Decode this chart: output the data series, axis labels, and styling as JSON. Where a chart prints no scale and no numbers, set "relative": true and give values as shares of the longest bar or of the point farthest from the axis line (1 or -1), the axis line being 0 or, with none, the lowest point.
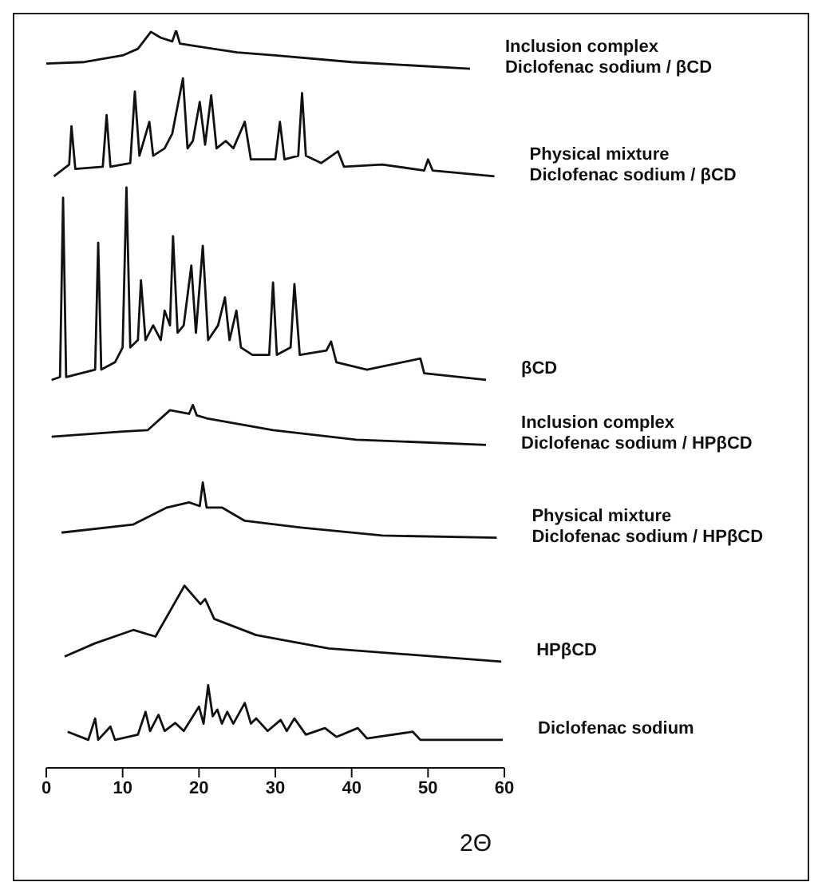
{
  "chart_data": {
    "type": "line",
    "xlabel": "2Θ",
    "xlim": [
      0,
      60
    ],
    "xticks": [
      0,
      10,
      20,
      30,
      40,
      50,
      60
    ],
    "relative": true,
    "tick_labels": "x",
    "grid": false,
    "legend": false,
    "marker": "none",
    "line_style": "solid",
    "series": [
      {
        "name": "Inclusion complex\nDiclofenac sodium / βCD",
        "color": "#111111",
        "x": [
          0,
          5,
          10,
          12,
          13.7,
          15,
          16.5,
          17,
          17.5,
          20,
          25,
          30,
          40,
          55.5
        ],
        "values": [
          0.955,
          0.957,
          0.966,
          0.975,
          0.998,
          0.99,
          0.985,
          1,
          0.982,
          0.978,
          0.97,
          0.966,
          0.957,
          0.948
        ]
      },
      {
        "name": "Physical mixture\nDiclofenac sodium / βCD",
        "color": "#111111",
        "x": [
          1,
          3,
          3.3,
          3.8,
          7.4,
          7.9,
          8.4,
          11,
          11.6,
          12.2,
          13.5,
          14,
          15.5,
          16.5,
          17.9,
          18.5,
          19.2,
          20.1,
          20.8,
          21.6,
          22.3,
          23.5,
          24.5,
          26,
          26.8,
          30,
          30.6,
          31.2,
          33,
          33.5,
          34,
          36,
          38.2,
          39,
          44,
          49.5,
          50,
          50.6,
          58.7
        ],
        "values": [
          0.802,
          0.818,
          0.87,
          0.812,
          0.815,
          0.885,
          0.815,
          0.82,
          0.917,
          0.83,
          0.876,
          0.83,
          0.84,
          0.86,
          0.935,
          0.84,
          0.85,
          0.903,
          0.845,
          0.912,
          0.84,
          0.85,
          0.84,
          0.876,
          0.825,
          0.825,
          0.876,
          0.825,
          0.83,
          0.915,
          0.83,
          0.82,
          0.836,
          0.815,
          0.818,
          0.81,
          0.825,
          0.81,
          0.802
        ]
      },
      {
        "name": "βCD",
        "color": "#111111",
        "x": [
          0.7,
          1.8,
          2.2,
          2.6,
          6.4,
          6.8,
          7.2,
          9,
          10,
          10.5,
          11,
          12,
          12.4,
          13,
          14,
          15,
          15.5,
          16.2,
          16.6,
          17.2,
          18,
          19,
          19.6,
          20.5,
          21.2,
          22.5,
          23.4,
          24,
          24.9,
          25.5,
          27,
          29.2,
          29.7,
          30.2,
          32,
          32.5,
          33.2,
          36.7,
          37.3,
          38,
          42,
          49,
          49.5,
          57.6
        ],
        "values": [
          0.526,
          0.53,
          0.773,
          0.53,
          0.54,
          0.712,
          0.54,
          0.55,
          0.57,
          0.787,
          0.57,
          0.58,
          0.661,
          0.58,
          0.6,
          0.58,
          0.62,
          0.6,
          0.721,
          0.59,
          0.6,
          0.681,
          0.59,
          0.708,
          0.58,
          0.6,
          0.638,
          0.58,
          0.62,
          0.57,
          0.56,
          0.56,
          0.658,
          0.56,
          0.57,
          0.656,
          0.56,
          0.566,
          0.578,
          0.55,
          0.54,
          0.555,
          0.535,
          0.526
        ]
      },
      {
        "name": "Inclusion complex\nDiclofenac sodium / HPβCD",
        "color": "#111111",
        "x": [
          0.7,
          10,
          13.3,
          16.2,
          18.7,
          19.2,
          19.7,
          21,
          29.7,
          40.6,
          57.6
        ],
        "values": [
          0.449,
          0.456,
          0.458,
          0.485,
          0.48,
          0.492,
          0.478,
          0.474,
          0.458,
          0.445,
          0.438
        ]
      },
      {
        "name": "Physical mixture\nDiclofenac sodium / HPβCD",
        "color": "#111111",
        "x": [
          2,
          11.4,
          15.8,
          18.7,
          20.1,
          20.5,
          21,
          23,
          26,
          33.3,
          44,
          59
        ],
        "values": [
          0.319,
          0.33,
          0.353,
          0.36,
          0.355,
          0.387,
          0.353,
          0.353,
          0.335,
          0.326,
          0.315,
          0.312
        ]
      },
      {
        "name": "HPβCD",
        "color": "#111111",
        "x": [
          2.4,
          6.4,
          11.4,
          14.3,
          18.1,
          20.2,
          20.8,
          22,
          27.5,
          37,
          59.6
        ],
        "values": [
          0.151,
          0.169,
          0.187,
          0.178,
          0.247,
          0.222,
          0.229,
          0.202,
          0.18,
          0.162,
          0.144
        ]
      },
      {
        "name": "Diclofenac sodium",
        "color": "#111111",
        "x": [
          2.8,
          5.5,
          6.4,
          6.8,
          8.4,
          9,
          12,
          13,
          13.6,
          14.7,
          15.5,
          16.9,
          18,
          20,
          20.6,
          21.2,
          21.8,
          22.4,
          23,
          23.7,
          24.5,
          26,
          26.8,
          27.5,
          29,
          30.7,
          31.5,
          32.5,
          34,
          36.5,
          38,
          40.8,
          42,
          48,
          49,
          59.8
        ],
        "values": [
          0.049,
          0.038,
          0.067,
          0.038,
          0.056,
          0.038,
          0.045,
          0.076,
          0.05,
          0.072,
          0.05,
          0.061,
          0.05,
          0.083,
          0.06,
          0.112,
          0.07,
          0.079,
          0.06,
          0.076,
          0.06,
          0.088,
          0.06,
          0.067,
          0.05,
          0.065,
          0.05,
          0.067,
          0.045,
          0.054,
          0.042,
          0.054,
          0.04,
          0.049,
          0.038,
          0.038
        ]
      }
    ]
  }
}
